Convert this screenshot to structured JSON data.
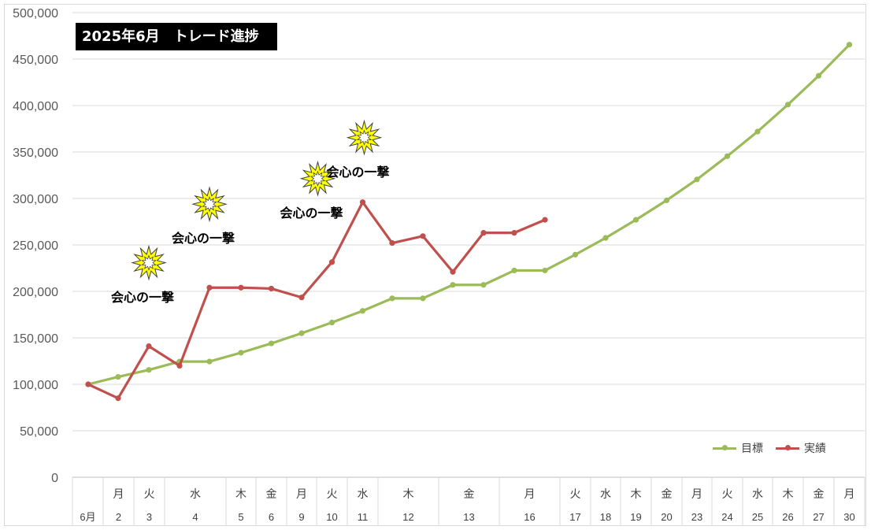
{
  "chart_data": {
    "type": "line",
    "title": "2025年6月　トレード進捗",
    "ylim": [
      0,
      500000
    ],
    "yticks": [
      "0",
      "50,000",
      "100,000",
      "150,000",
      "200,000",
      "250,000",
      "300,000",
      "350,000",
      "400,000",
      "450,000",
      "500,000"
    ],
    "grid": true,
    "legend_position": "bottom-right",
    "x_categories": [
      {
        "dow": "",
        "date": "6月"
      },
      {
        "dow": "月",
        "date": "2"
      },
      {
        "dow": "火",
        "date": "3"
      },
      {
        "dow": "水",
        "date": "4"
      },
      {
        "dow": "木",
        "date": "5"
      },
      {
        "dow": "金",
        "date": "6"
      },
      {
        "dow": "月",
        "date": "9"
      },
      {
        "dow": "火",
        "date": "10"
      },
      {
        "dow": "水",
        "date": "11"
      },
      {
        "dow": "木",
        "date": "12"
      },
      {
        "dow": "金",
        "date": "13"
      },
      {
        "dow": "月",
        "date": "16"
      },
      {
        "dow": "火",
        "date": "17"
      },
      {
        "dow": "水",
        "date": "18"
      },
      {
        "dow": "木",
        "date": "19"
      },
      {
        "dow": "金",
        "date": "20"
      },
      {
        "dow": "月",
        "date": "23"
      },
      {
        "dow": "火",
        "date": "24"
      },
      {
        "dow": "水",
        "date": "25"
      },
      {
        "dow": "木",
        "date": "26"
      },
      {
        "dow": "金",
        "date": "27"
      },
      {
        "dow": "月",
        "date": "30"
      }
    ],
    "series": [
      {
        "name": "目標",
        "color": "#9bbb59",
        "points": [
          {
            "cat": 0,
            "v": 100000
          },
          {
            "cat": 1,
            "v": 108000
          },
          {
            "cat": 2,
            "v": 115500
          },
          {
            "cat": 3,
            "v": 124500
          },
          {
            "cat": 3.5,
            "v": 124500
          },
          {
            "cat": 4,
            "v": 134000
          },
          {
            "cat": 5,
            "v": 144000
          },
          {
            "cat": 6,
            "v": 155000
          },
          {
            "cat": 7,
            "v": 166500
          },
          {
            "cat": 8,
            "v": 179000
          },
          {
            "cat": 9,
            "v": 192500
          },
          {
            "cat": 9.5,
            "v": 192500
          },
          {
            "cat": 10,
            "v": 207000
          },
          {
            "cat": 10.5,
            "v": 207000
          },
          {
            "cat": 11,
            "v": 222500
          },
          {
            "cat": 11.5,
            "v": 222500
          },
          {
            "cat": 12,
            "v": 239500
          },
          {
            "cat": 13,
            "v": 257500
          },
          {
            "cat": 14,
            "v": 277000
          },
          {
            "cat": 15,
            "v": 298000
          },
          {
            "cat": 16,
            "v": 320500
          },
          {
            "cat": 17,
            "v": 345500
          },
          {
            "cat": 18,
            "v": 372000
          },
          {
            "cat": 19,
            "v": 401000
          },
          {
            "cat": 20,
            "v": 432000
          },
          {
            "cat": 21,
            "v": 465500
          }
        ]
      },
      {
        "name": "実績",
        "color": "#c0504d",
        "points": [
          {
            "cat": 0,
            "v": 100000
          },
          {
            "cat": 1,
            "v": 85000
          },
          {
            "cat": 2,
            "v": 141000
          },
          {
            "cat": 3,
            "v": 120000
          },
          {
            "cat": 3.5,
            "v": 204000
          },
          {
            "cat": 4,
            "v": 204000
          },
          {
            "cat": 5,
            "v": 203000
          },
          {
            "cat": 6,
            "v": 193500
          },
          {
            "cat": 7,
            "v": 231500
          },
          {
            "cat": 8,
            "v": 296000
          },
          {
            "cat": 9,
            "v": 252000
          },
          {
            "cat": 9.5,
            "v": 259500
          },
          {
            "cat": 10,
            "v": 221000
          },
          {
            "cat": 10.5,
            "v": 263000
          },
          {
            "cat": 11,
            "v": 263000
          },
          {
            "cat": 11.5,
            "v": 277000
          }
        ]
      }
    ],
    "annotations": [
      {
        "text": "会心の一撃",
        "cat": 2
      },
      {
        "text": "会心の一撃",
        "cat": 3.5
      },
      {
        "text": "会心の一撃",
        "cat": 7
      },
      {
        "text": "会心の一撃",
        "cat": 8
      }
    ],
    "burst_colors": {
      "fill": "#ffff00",
      "stroke": "#404040"
    }
  }
}
